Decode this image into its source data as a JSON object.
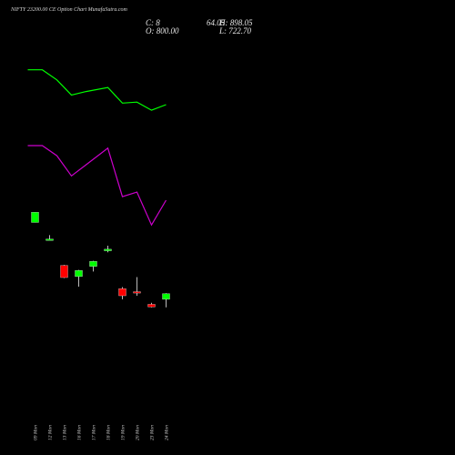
{
  "title": "NIFTY 23200.00 CE Option Chart MunafaSutra.com",
  "ohlc": {
    "c_label": "C: 8",
    "o_label": "O: 800.00",
    "c_extra": "64.05",
    "h_label": "H: 898.05",
    "l_label": "L: 722.70"
  },
  "chart_data": {
    "type": "candlestick",
    "categories": [
      "09 Mon",
      "12 Mon",
      "13 Mon",
      "16 Mon",
      "17 Mon",
      "18 Mon",
      "19 Mon",
      "20 Mon",
      "23 Mon",
      "24 Mon"
    ],
    "candles": [
      {
        "open": 1620,
        "high": 1660,
        "low": 1620,
        "close": 1660,
        "color": "#00ff00"
      },
      {
        "open": 1550,
        "high": 1570,
        "low": 1550,
        "close": 1554,
        "color": "#00ff00"
      },
      {
        "open": 1450,
        "high": 1452,
        "low": 1400,
        "close": 1402,
        "color": "#ff0000"
      },
      {
        "open": 1406,
        "high": 1432,
        "low": 1366,
        "close": 1430,
        "color": "#00ff00"
      },
      {
        "open": 1446,
        "high": 1468,
        "low": 1426,
        "close": 1466,
        "color": "#00ff00"
      },
      {
        "open": 1508,
        "high": 1528,
        "low": 1502,
        "close": 1514,
        "color": "#00ff00"
      },
      {
        "open": 1358,
        "high": 1364,
        "low": 1316,
        "close": 1330,
        "color": "#ff0000"
      },
      {
        "open": 1346,
        "high": 1404,
        "low": 1330,
        "close": 1342,
        "color": "#ff0000"
      },
      {
        "open": 1296,
        "high": 1302,
        "low": 1284,
        "close": 1286,
        "color": "#ff0000"
      },
      {
        "open": 1316,
        "high": 1340,
        "low": 1284,
        "close": 1338,
        "color": "#00ff00"
      }
    ],
    "lines": [
      {
        "color": "#00ff00",
        "x": [
          -1,
          1,
          3,
          5,
          7,
          10,
          12,
          14,
          16,
          18
        ],
        "values": [
          2224,
          2224,
          2184,
          2124,
          2138,
          2154,
          2092,
          2096,
          2064,
          2086
        ]
      },
      {
        "color": "#cc00cc",
        "x": [
          -1,
          1,
          3,
          5,
          7,
          10,
          12,
          14,
          16,
          18
        ],
        "values": [
          1924,
          1924,
          1884,
          1804,
          1848,
          1914,
          1722,
          1740,
          1610,
          1708
        ]
      }
    ],
    "ylim": [
      700,
      2500
    ],
    "grid": false
  }
}
